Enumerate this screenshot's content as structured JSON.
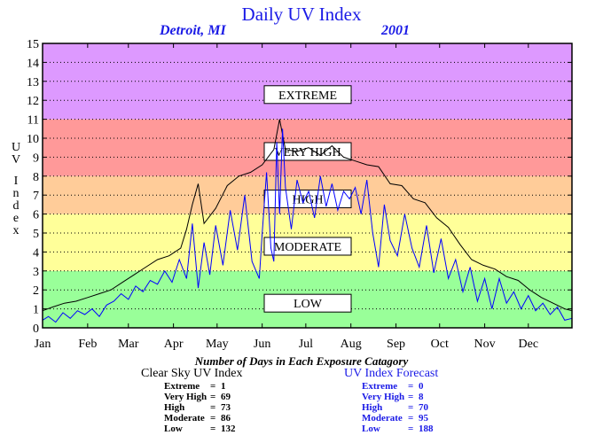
{
  "chart_data": {
    "type": "line",
    "title": "Daily UV Index",
    "subtitle_location": "Detroit, MI",
    "subtitle_year": "2001",
    "ylabel": "UV Index",
    "ylim": [
      0,
      15
    ],
    "y_ticks": [
      "0",
      "1",
      "2",
      "3",
      "4",
      "5",
      "6",
      "7",
      "8",
      "9",
      "10",
      "11",
      "12",
      "13",
      "14",
      "15"
    ],
    "x_ticks": [
      "Jan",
      "Feb",
      "Mar",
      "Apr",
      "May",
      "Jun",
      "Jul",
      "Aug",
      "Sep",
      "Oct",
      "Nov",
      "Dec"
    ],
    "grid": true,
    "bands": [
      {
        "label": "LOW",
        "from": 0,
        "to": 3,
        "color": "#99ff99",
        "label_at": 1.3
      },
      {
        "label": "MODERATE",
        "from": 3,
        "to": 6,
        "color": "#ffff99",
        "label_at": 4.3
      },
      {
        "label": "HIGH",
        "from": 6,
        "to": 8,
        "color": "#ffcc99",
        "label_at": 6.8
      },
      {
        "label": "VERY HIGH",
        "from": 8,
        "to": 11,
        "color": "#ff9999",
        "label_at": 9.3
      },
      {
        "label": "EXTREME",
        "from": 11,
        "to": 15,
        "color": "#dd99ff",
        "label_at": 12.3
      }
    ],
    "series": [
      {
        "name": "Clear Sky UV Index",
        "color": "#000000",
        "x": [
          1,
          8,
          16,
          24,
          32,
          40,
          48,
          56,
          64,
          72,
          80,
          88,
          96,
          100,
          104,
          108,
          112,
          120,
          128,
          136,
          144,
          152,
          156,
          160,
          164,
          168,
          176,
          184,
          192,
          200,
          208,
          216,
          224,
          232,
          240,
          248,
          256,
          264,
          272,
          280,
          288,
          296,
          304,
          312,
          320,
          328,
          336,
          344,
          352,
          360,
          365
        ],
        "y": [
          0.9,
          1.1,
          1.3,
          1.4,
          1.6,
          1.8,
          2.0,
          2.4,
          2.8,
          3.2,
          3.6,
          3.8,
          4.2,
          5.2,
          6.5,
          7.6,
          5.5,
          6.3,
          7.5,
          8.0,
          8.2,
          8.6,
          9.0,
          9.4,
          11.0,
          9.4,
          9.3,
          9.5,
          9.1,
          9.6,
          9.0,
          8.8,
          8.6,
          8.5,
          7.6,
          7.5,
          6.8,
          6.6,
          5.8,
          5.3,
          4.4,
          3.6,
          3.3,
          3.1,
          2.7,
          2.5,
          2.0,
          1.6,
          1.3,
          1.0,
          0.9
        ]
      },
      {
        "name": "UV Index Forecast",
        "color": "#0000ff",
        "x": [
          1,
          5,
          10,
          15,
          20,
          25,
          30,
          35,
          40,
          45,
          50,
          55,
          60,
          65,
          70,
          75,
          80,
          85,
          90,
          95,
          100,
          104,
          108,
          112,
          116,
          120,
          125,
          130,
          135,
          140,
          145,
          150,
          152,
          155,
          158,
          160,
          162,
          164,
          166,
          168,
          172,
          176,
          180,
          184,
          188,
          192,
          196,
          200,
          204,
          208,
          212,
          216,
          220,
          224,
          228,
          232,
          236,
          240,
          245,
          250,
          255,
          260,
          265,
          270,
          275,
          280,
          285,
          290,
          295,
          300,
          305,
          310,
          315,
          320,
          325,
          330,
          335,
          340,
          345,
          350,
          355,
          360,
          365
        ],
        "y": [
          0.4,
          0.6,
          0.3,
          0.8,
          0.5,
          0.9,
          0.7,
          1.0,
          0.6,
          1.2,
          1.4,
          1.8,
          1.5,
          2.2,
          1.9,
          2.5,
          2.3,
          3.0,
          2.4,
          3.6,
          2.6,
          5.5,
          2.1,
          4.5,
          2.8,
          5.4,
          3.3,
          6.2,
          4.1,
          7.0,
          3.5,
          2.6,
          5.0,
          8.2,
          4.2,
          3.5,
          9.8,
          6.0,
          10.5,
          7.4,
          5.2,
          7.8,
          6.6,
          7.2,
          5.8,
          8.0,
          6.4,
          7.6,
          6.2,
          7.2,
          6.8,
          7.4,
          6.0,
          7.8,
          5.0,
          3.2,
          6.5,
          4.6,
          3.8,
          6.0,
          4.2,
          3.2,
          5.4,
          2.9,
          4.7,
          2.6,
          3.6,
          1.9,
          3.2,
          1.4,
          2.6,
          1.0,
          2.6,
          1.3,
          1.9,
          1.0,
          1.7,
          0.9,
          1.3,
          0.7,
          1.1,
          0.4,
          0.5
        ]
      }
    ]
  },
  "stats": {
    "caption": "Number of Days in Each Exposure Catagory",
    "clear_sky": {
      "title": "Clear Sky UV Index",
      "rows": [
        {
          "label": "Extreme",
          "value": "1"
        },
        {
          "label": "Very High",
          "value": "69"
        },
        {
          "label": "High",
          "value": "73"
        },
        {
          "label": "Moderate",
          "value": "86"
        },
        {
          "label": "Low",
          "value": "132"
        }
      ]
    },
    "forecast": {
      "title": "UV Index Forecast",
      "rows": [
        {
          "label": "Extreme",
          "value": "0"
        },
        {
          "label": "Very High",
          "value": "8"
        },
        {
          "label": "High",
          "value": "70"
        },
        {
          "label": "Moderate",
          "value": "95"
        },
        {
          "label": "Low",
          "value": "188"
        }
      ]
    }
  }
}
